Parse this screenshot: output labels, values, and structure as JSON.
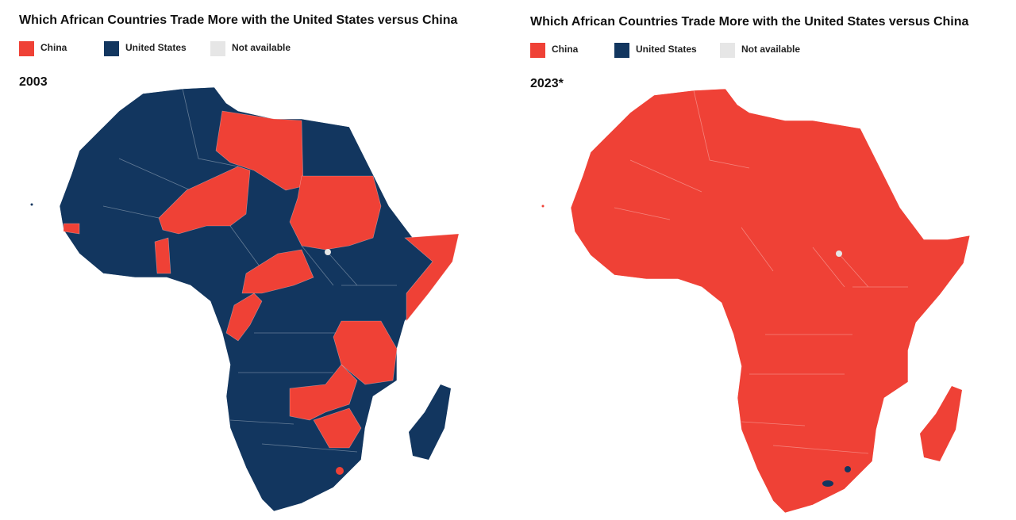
{
  "maps": [
    {
      "title": "Which African Countries Trade More with the United States versus China",
      "legend": [
        {
          "label": "China",
          "color": "#ef4136"
        },
        {
          "label": "United States",
          "color": "#12365f"
        },
        {
          "label": "Not available",
          "color": "#e6e6e6"
        }
      ],
      "year": "2003"
    },
    {
      "title": "Which African Countries Trade More with the United States versus China",
      "legend": [
        {
          "label": "China",
          "color": "#ef4136"
        },
        {
          "label": "United States",
          "color": "#12365f"
        },
        {
          "label": "Not available",
          "color": "#e6e6e6"
        }
      ],
      "year": "2023*"
    }
  ]
}
